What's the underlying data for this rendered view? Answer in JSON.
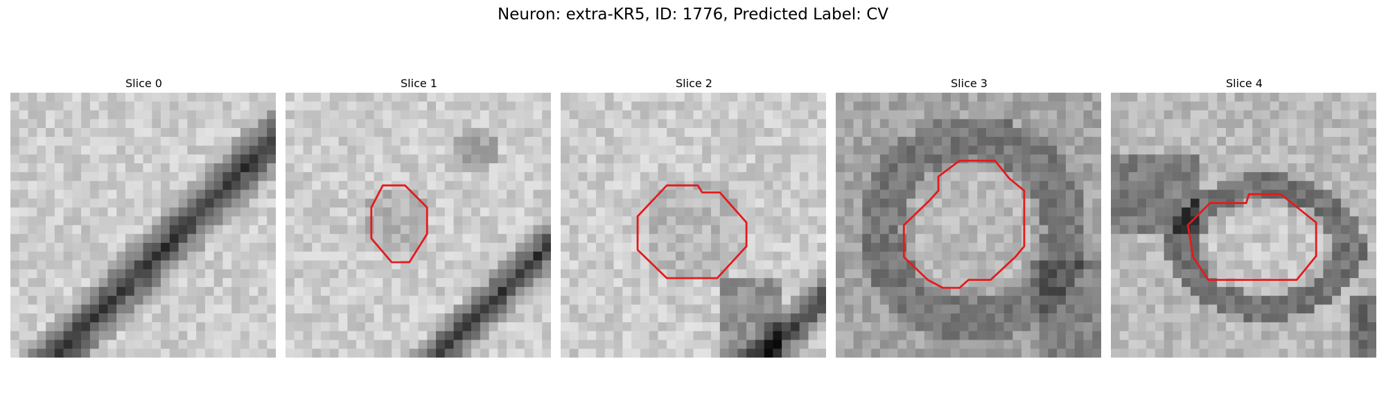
{
  "figure": {
    "title": "Neuron: extra-KR5, ID: 1776, Predicted Label: CV"
  },
  "slices": [
    {
      "title": "Slice 0",
      "has_contour": false
    },
    {
      "title": "Slice 1",
      "has_contour": true
    },
    {
      "title": "Slice 2",
      "has_contour": true
    },
    {
      "title": "Slice 3",
      "has_contour": true
    },
    {
      "title": "Slice 4",
      "has_contour": true
    }
  ],
  "colors": {
    "contour": "#e41a1c"
  }
}
